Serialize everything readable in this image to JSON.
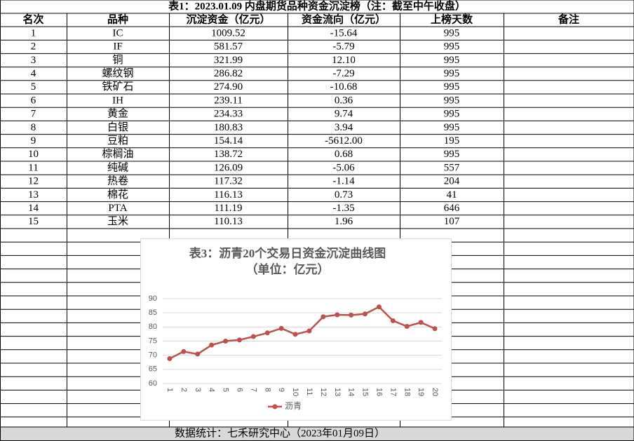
{
  "title": "表1：2023.01.09 内盘期货品种资金沉淀榜（注：截至中午收盘）",
  "table": {
    "header": [
      "名次",
      "品种",
      "沉淀资金（亿元）",
      "资金流向（亿元）",
      "上榜天数",
      "备注"
    ],
    "rows": [
      [
        "1",
        "IC",
        "1009.52",
        "-15.64",
        "995"
      ],
      [
        "2",
        "IF",
        "581.57",
        "-5.79",
        "995"
      ],
      [
        "3",
        "铜",
        "321.99",
        "12.10",
        "995"
      ],
      [
        "4",
        "螺纹钢",
        "286.82",
        "-7.29",
        "995"
      ],
      [
        "5",
        "铁矿石",
        "274.90",
        "-10.68",
        "995"
      ],
      [
        "6",
        "IH",
        "239.11",
        "0.36",
        "995"
      ],
      [
        "7",
        "黄金",
        "234.33",
        "9.74",
        "995"
      ],
      [
        "8",
        "白银",
        "180.83",
        "3.94",
        "995"
      ],
      [
        "9",
        "豆粕",
        "154.14",
        "-5612.00",
        "195"
      ],
      [
        "10",
        "棕榈油",
        "138.72",
        "0.68",
        "995"
      ],
      [
        "11",
        "纯碱",
        "126.09",
        "-5.06",
        "557"
      ],
      [
        "12",
        "热卷",
        "117.32",
        "-1.14",
        "204"
      ],
      [
        "13",
        "棉花",
        "116.13",
        "0.73",
        "41"
      ],
      [
        "14",
        "PTA",
        "111.19",
        "-1.35",
        "646"
      ],
      [
        "15",
        "玉米",
        "110.13",
        "1.96",
        "107"
      ]
    ]
  },
  "footer": "数据统计：七禾研究中心（2023年01月09日）",
  "chart_data": {
    "type": "line",
    "title": "表3：沥青20个交易日资金沉淀曲线图",
    "subtitle": "（单位：亿元）",
    "x": [
      1,
      2,
      3,
      4,
      5,
      6,
      7,
      8,
      9,
      10,
      11,
      12,
      13,
      14,
      15,
      16,
      17,
      18,
      19,
      20
    ],
    "series": [
      {
        "name": "沥青",
        "color": "#c0504d",
        "values": [
          68.8,
          71.3,
          70.4,
          73.6,
          75.0,
          75.4,
          76.6,
          77.9,
          79.5,
          77.4,
          78.6,
          83.6,
          84.3,
          84.2,
          84.6,
          87.1,
          82.2,
          80.2,
          81.6,
          79.4
        ]
      }
    ],
    "xlim": [
      0.5,
      20.5
    ],
    "ylim": [
      60,
      90
    ],
    "yticks": [
      60,
      65,
      70,
      75,
      80,
      85,
      90
    ],
    "grid": true,
    "legend": "bottom"
  }
}
